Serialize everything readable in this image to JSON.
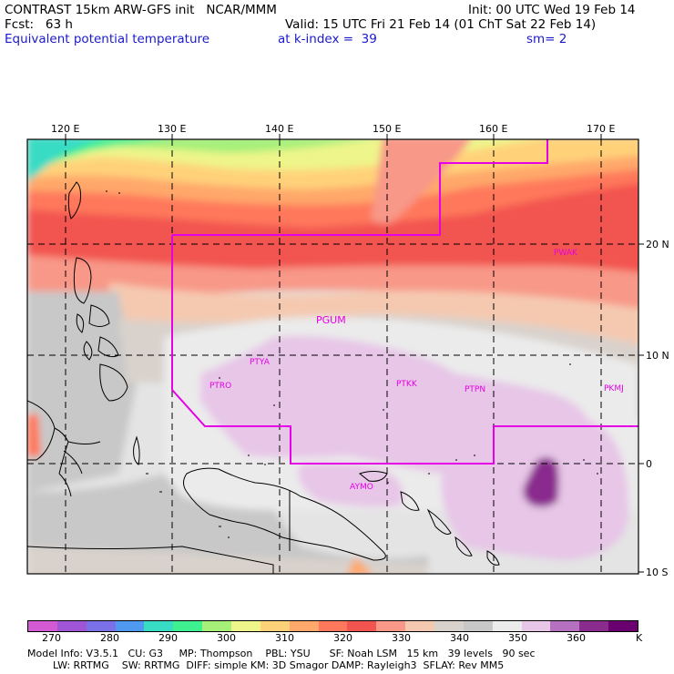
{
  "header": {
    "left_line1": "CONTRAST 15km ARW-GFS init   NCAR/MMM",
    "left_line2": "Fcst:   63 h",
    "field_name": "Equivalent potential temperature",
    "right_line1": "Init: 00 UTC Wed 19 Feb 14",
    "right_line2": "Valid: 15 UTC Fri 21 Feb 14 (01 ChT Sat 22 Feb 14)",
    "level": "at k-index =  39",
    "smoothing": "sm= 2"
  },
  "map": {
    "lon_labels": [
      "120 E",
      "130 E",
      "140 E",
      "150 E",
      "160 E",
      "170 E"
    ],
    "lat_labels": [
      "20 N",
      "10 N",
      "0",
      "10 S"
    ],
    "stations": [
      "PWAK",
      "PGUM",
      "PTYA",
      "PTRO",
      "PTKK",
      "PTPN",
      "PKMJ",
      "AYMO"
    ],
    "boundary_color": "#e600e6"
  },
  "colorbar": {
    "labels": [
      "270",
      "280",
      "290",
      "300",
      "310",
      "320",
      "330",
      "340",
      "350",
      "360"
    ],
    "unit": "K",
    "colors": [
      "#d45ad4",
      "#a055d6",
      "#7a70e8",
      "#4f9af0",
      "#38dcc4",
      "#3ef08f",
      "#a6f07a",
      "#eef58a",
      "#ffd27a",
      "#ffa86b",
      "#ff785c",
      "#f25550",
      "#f89888",
      "#f5c9b0",
      "#d9d2cc",
      "#c8c8c8",
      "#ebebeb",
      "#e7c6e7",
      "#b570c0",
      "#8a2c8e",
      "#6a0070"
    ]
  },
  "footer": {
    "line1": "Model Info: V3.5.1   CU: G3     MP: Thompson    PBL: YSU      SF: Noah LSM   15 km   39 levels   90 sec",
    "line2": "        LW: RRTMG    SW: RRTMG  DIFF: simple KM: 3D Smagor DAMP: Rayleigh3  SFLAY: Rev MM5"
  }
}
